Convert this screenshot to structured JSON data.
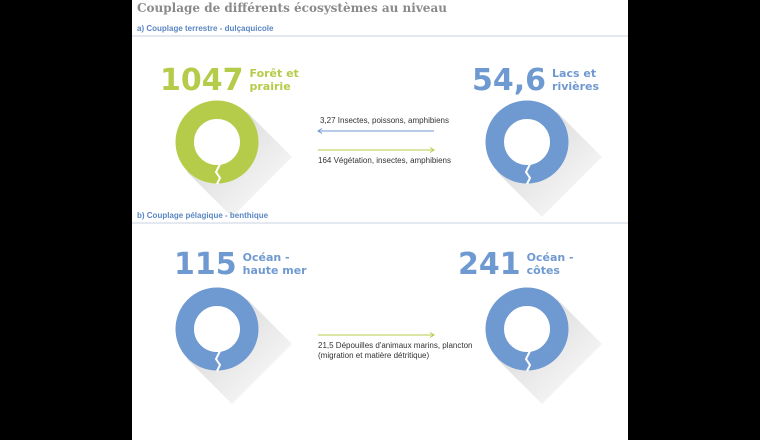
{
  "title": "Couplage de différents écosystèmes au niveau",
  "sections": [
    {
      "heading": "a) Couplage terrestre - dulçaquicole",
      "nodes": [
        {
          "value": "1047",
          "label": [
            "Forêt et",
            "prairie"
          ],
          "color": "#b5cc4a"
        },
        {
          "value": "54,6",
          "label": [
            "Lacs et",
            "rivières"
          ],
          "color": "#6f99d1"
        }
      ],
      "flows": [
        {
          "text": [
            "3,27 Insectes, poissons, amphibiens"
          ],
          "direction": "left",
          "color": "#6f99d1"
        },
        {
          "text": [
            "164 Végétation, insectes, amphibiens"
          ],
          "direction": "right",
          "color": "#b5cc4a"
        }
      ]
    },
    {
      "heading": "b) Couplage pélagique - benthique",
      "nodes": [
        {
          "value": "115",
          "label": [
            "Océan -",
            "haute mer"
          ],
          "color": "#6f99d1"
        },
        {
          "value": "241",
          "label": [
            "Océan -",
            "côtes"
          ],
          "color": "#6f99d1"
        }
      ],
      "flows": [
        {
          "text": [
            "21,5 Dépouilles d'animaux marins, plancton",
            "(migration et matière détritique)"
          ],
          "direction": "right",
          "color": "#b5cc4a"
        }
      ]
    }
  ]
}
